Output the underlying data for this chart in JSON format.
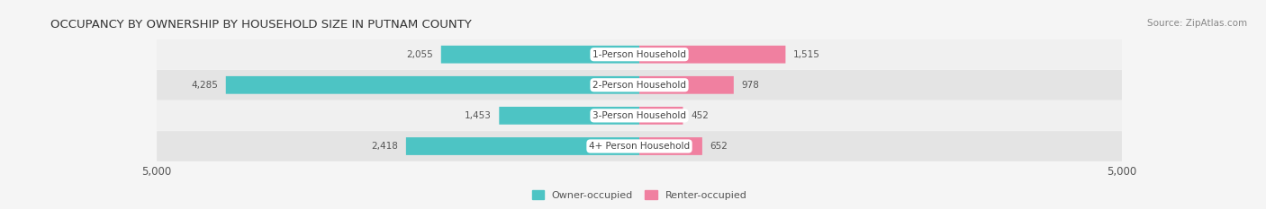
{
  "title": "OCCUPANCY BY OWNERSHIP BY HOUSEHOLD SIZE IN PUTNAM COUNTY",
  "source": "Source: ZipAtlas.com",
  "categories": [
    "1-Person Household",
    "2-Person Household",
    "3-Person Household",
    "4+ Person Household"
  ],
  "owner_values": [
    2055,
    4285,
    1453,
    2418
  ],
  "renter_values": [
    1515,
    978,
    452,
    652
  ],
  "max_scale": 5000,
  "owner_color": "#4DC4C4",
  "renter_color": "#F080A0",
  "row_colors": [
    "#F2F2F2",
    "#E8E8E8",
    "#F2F2F2",
    "#E8E8E8"
  ],
  "bg_color": "#F5F5F5",
  "title_fontsize": 9.5,
  "label_fontsize": 7.5,
  "tick_fontsize": 8.5,
  "legend_fontsize": 8,
  "source_fontsize": 7.5,
  "value_fontsize": 7.5
}
